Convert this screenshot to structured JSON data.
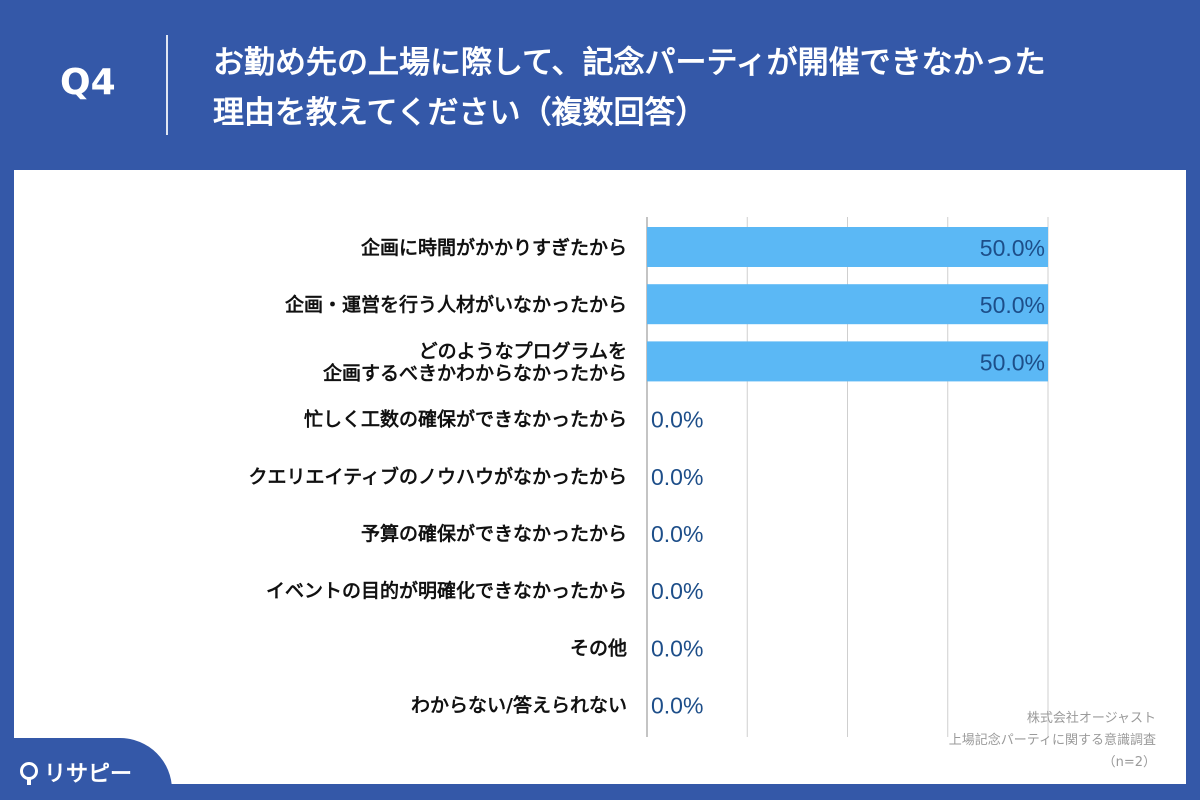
{
  "header": {
    "question_label": "Q4",
    "title_line1": "お勤め先の上場に際して、記念パーティが開催できなかった",
    "title_line2": "理由を教えてください（複数回答）"
  },
  "chart_data": {
    "type": "bar",
    "orientation": "horizontal",
    "categories": [
      [
        "企画に時間がかかりすぎたから"
      ],
      [
        "企画・運営を行う人材がいなかったから"
      ],
      [
        "どのようなプログラムを",
        "企画するべきかわからなかったから"
      ],
      [
        "忙しく工数の確保ができなかったから"
      ],
      [
        "クエリエイティブのノウハウがなかったから"
      ],
      [
        "予算の確保ができなかったから"
      ],
      [
        "イベントの目的が明確化できなかったから"
      ],
      [
        "その他"
      ],
      [
        "わからない/答えられない"
      ]
    ],
    "values": [
      50.0,
      50.0,
      50.0,
      0.0,
      0.0,
      0.0,
      0.0,
      0.0,
      0.0
    ],
    "value_labels": [
      "50.0%",
      "50.0%",
      "50.0%",
      "0.0%",
      "0.0%",
      "0.0%",
      "0.0%",
      "0.0%",
      "0.0%"
    ],
    "xlim": [
      0,
      50
    ],
    "gridlines": [
      0,
      12.5,
      25,
      37.5,
      50
    ],
    "bar_color": "#5bb8f5",
    "label_color": "#1d4e89",
    "grid_color": "#cfcfcf"
  },
  "source": {
    "company": "株式会社オージャスト",
    "survey": "上場記念パーティに関する意識調査",
    "sample": "（n=2）"
  },
  "brand": {
    "name": "リサピー"
  }
}
